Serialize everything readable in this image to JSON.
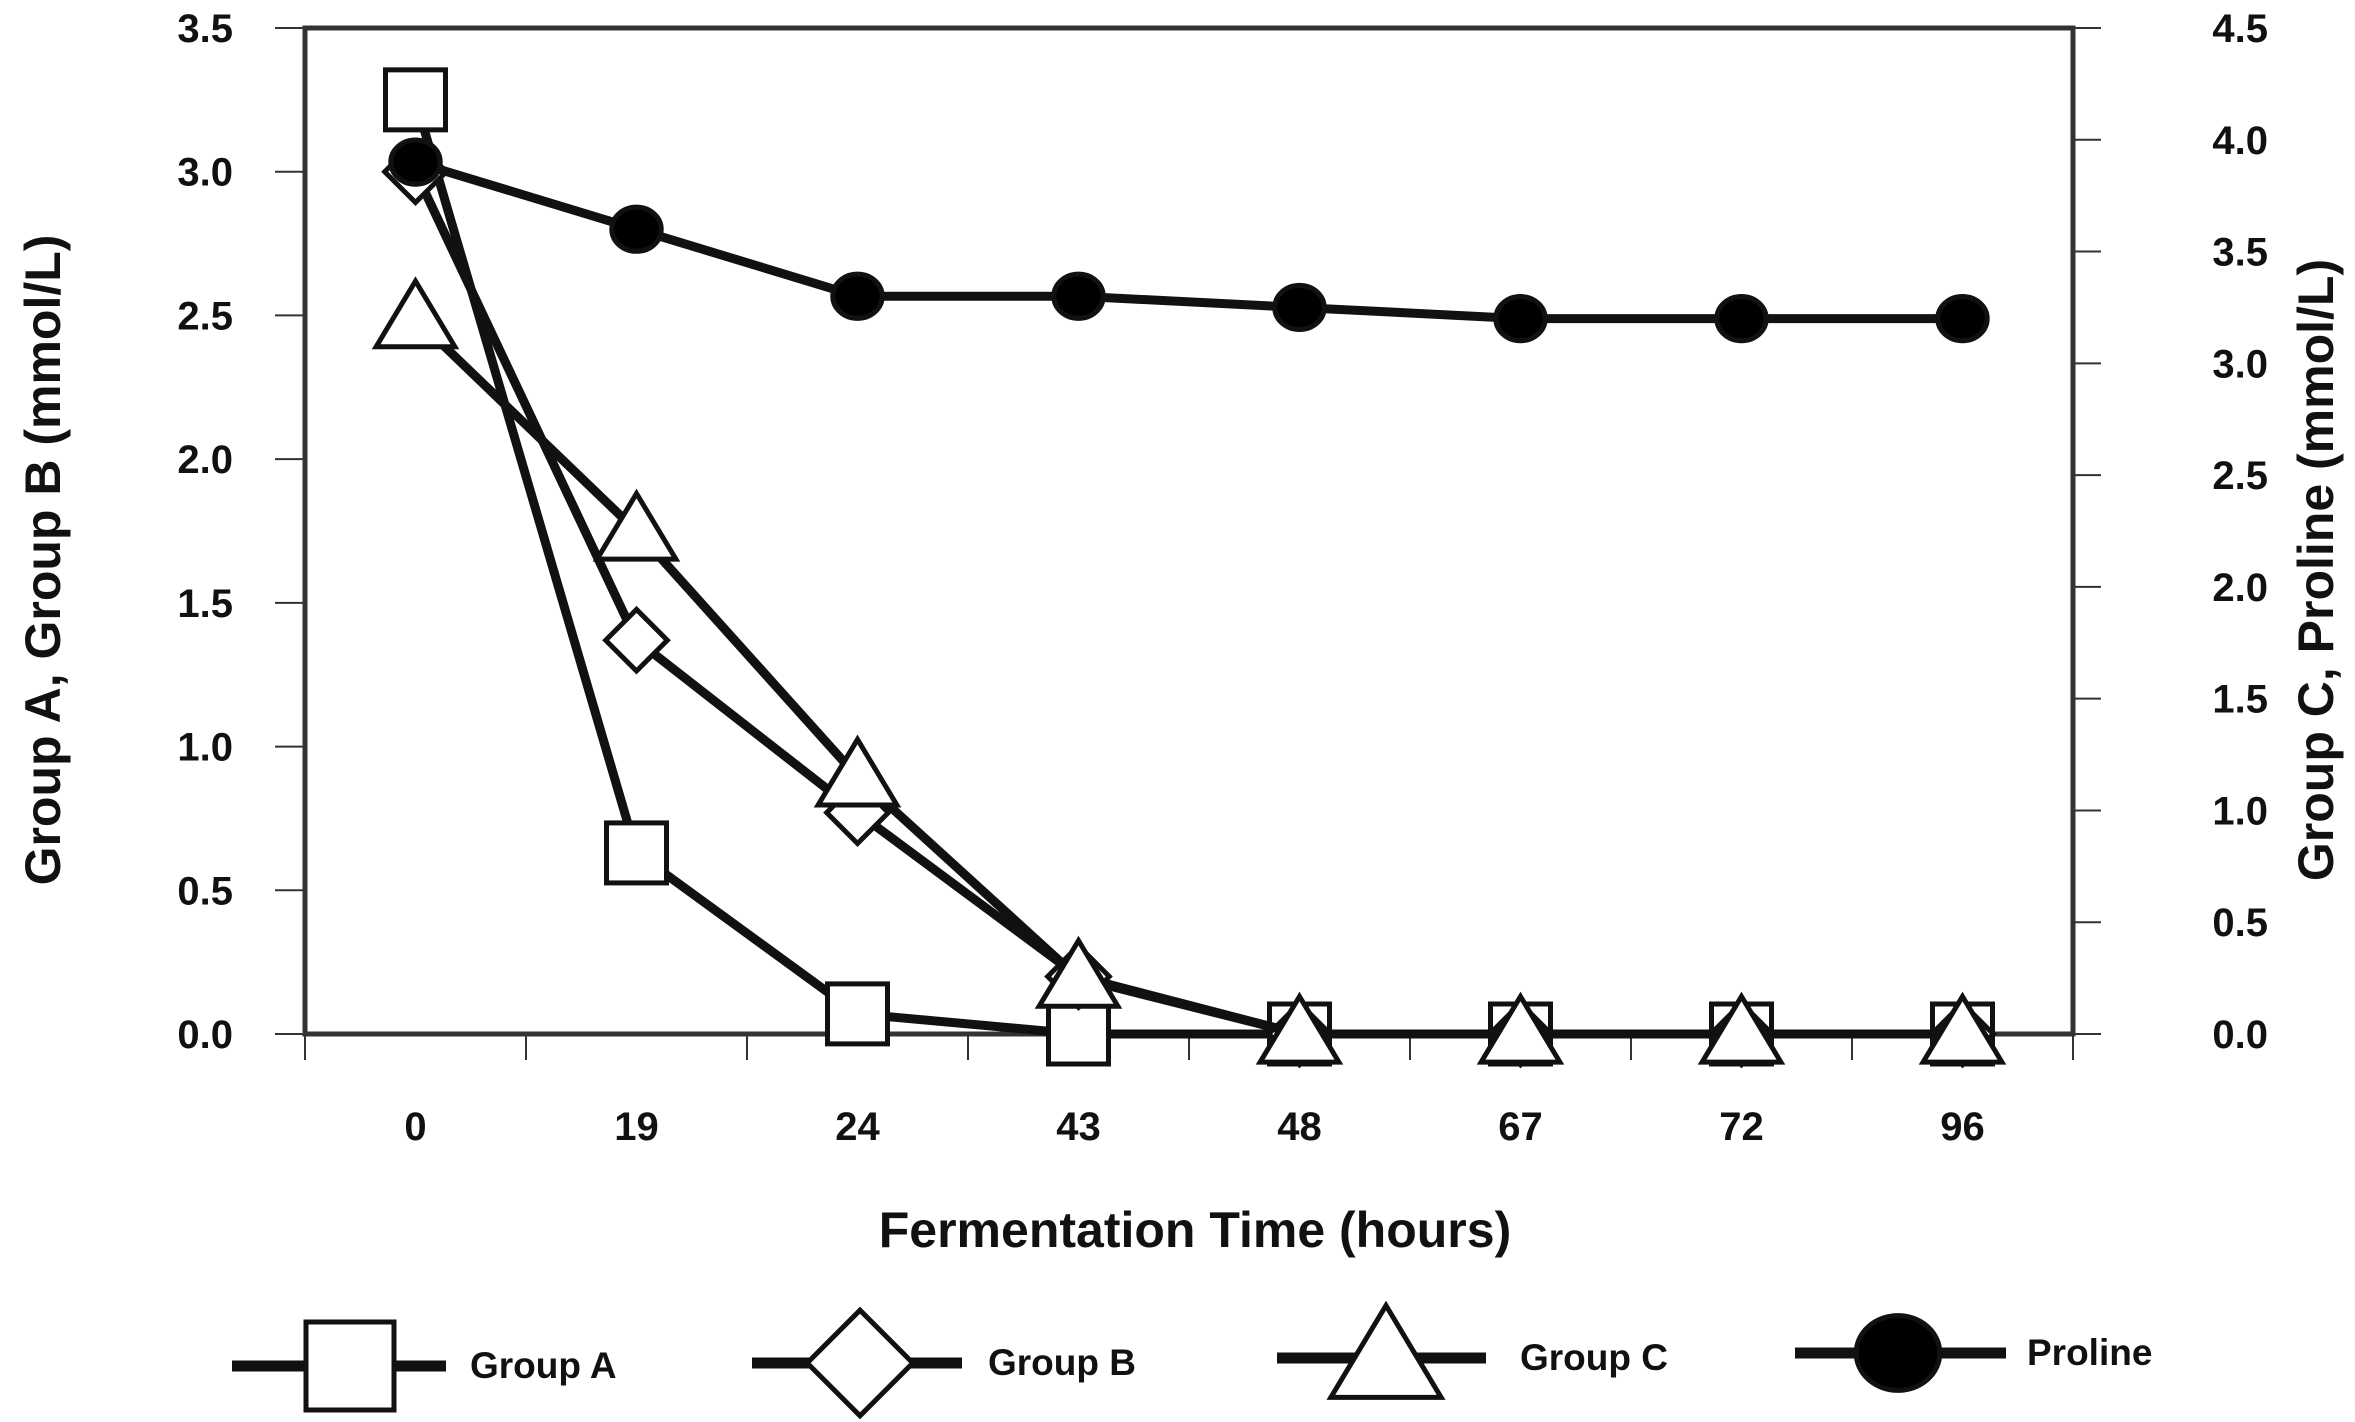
{
  "chart_data": {
    "type": "line",
    "title": "",
    "xlabel": "Fermentation Time (hours)",
    "ylabel_left": "Group A, Group B (mmol/L)",
    "ylabel_right": "Group C, Proline (mmol/L)",
    "categories": [
      "0",
      "19",
      "24",
      "43",
      "48",
      "67",
      "72",
      "96"
    ],
    "ylim_left": [
      0,
      3.5
    ],
    "ylim_right": [
      0,
      4.5
    ],
    "yticks_left": [
      "0.0",
      "0.5",
      "1.0",
      "1.5",
      "2.0",
      "2.5",
      "3.0",
      "3.5"
    ],
    "yticks_right": [
      "0.0",
      "0.5",
      "1.0",
      "1.5",
      "2.0",
      "2.5",
      "3.0",
      "3.5",
      "4.0",
      "4.5"
    ],
    "grid": false,
    "legend_position": "bottom",
    "series": [
      {
        "name": "Group A",
        "axis": "left",
        "marker": "square",
        "values": [
          3.25,
          0.63,
          0.07,
          0.0,
          0.0,
          0.0,
          0.0,
          0.0
        ]
      },
      {
        "name": "Group B",
        "axis": "left",
        "marker": "diamond",
        "values": [
          3.0,
          1.37,
          0.77,
          0.2,
          0.0,
          0.0,
          0.0,
          0.0
        ]
      },
      {
        "name": "Group C",
        "axis": "right",
        "marker": "triangle",
        "values": [
          3.2,
          2.25,
          1.15,
          0.25,
          0.0,
          0.0,
          0.0,
          0.0
        ]
      },
      {
        "name": "Proline",
        "axis": "right",
        "marker": "circle",
        "values": [
          3.9,
          3.6,
          3.3,
          3.3,
          3.25,
          3.2,
          3.2,
          3.2
        ]
      }
    ]
  }
}
